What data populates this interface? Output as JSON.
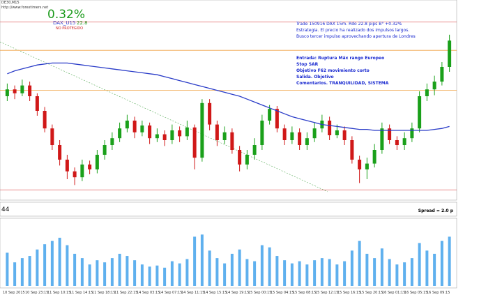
{
  "chart_data": {
    "type": "candlestick",
    "header": "DE30,M15",
    "subheader": "http://www.forextimers.net",
    "result": "0.32%",
    "symbol": "DAX_U15",
    "pips": "22.8",
    "status": "NO PROTEGIDO",
    "annotations": [
      "Trade 150916 DAX 15m. Rdo 22.8 pips B° +0.32%",
      "Estrategia. El precio ha realizado dos impulsos largos.",
      "Busco tercer impulso aprovechando apertura de Londres",
      "Entrada: Ruptura Máx rango Europeo",
      "Stop SAR",
      "Objetivo F62 movimiento corto",
      "Salida. Objetivo",
      "Comentarios. TRANQUILIDAD, SISTEMA"
    ],
    "indicator_value": "44",
    "spread": "Spread = 2.0 p",
    "x_labels": [
      "10 Sep 2015",
      "10 Sep 23:15",
      "11 Sep 10:15",
      "11 Sep 14:15",
      "11 Sep 18:15",
      "11 Sep 22:15",
      "14 Sep 03:15",
      "14 Sep 07:15",
      "14 Sep 11:15",
      "14 Sep 15:15",
      "14 Sep 19:15",
      "15 Sep 00:15",
      "15 Sep 04:15",
      "15 Sep 08:15",
      "15 Sep 12:15",
      "15 Sep 16:15",
      "15 Sep 20:15",
      "16 Sep 01:15",
      "16 Sep 05:15",
      "16 Sep 09:15"
    ],
    "ylim": [
      10150,
      10350
    ],
    "up_color": "#1aa01a",
    "down_color": "#d01818",
    "ohlc": [
      [
        10255,
        10268,
        10250,
        10262
      ],
      [
        10262,
        10266,
        10252,
        10258
      ],
      [
        10258,
        10272,
        10255,
        10266
      ],
      [
        10266,
        10270,
        10250,
        10255
      ],
      [
        10255,
        10258,
        10235,
        10240
      ],
      [
        10240,
        10244,
        10218,
        10222
      ],
      [
        10222,
        10226,
        10200,
        10205
      ],
      [
        10205,
        10210,
        10184,
        10190
      ],
      [
        10190,
        10195,
        10170,
        10178
      ],
      [
        10178,
        10182,
        10164,
        10172
      ],
      [
        10172,
        10190,
        10168,
        10185
      ],
      [
        10185,
        10189,
        10175,
        10180
      ],
      [
        10180,
        10200,
        10176,
        10195
      ],
      [
        10195,
        10210,
        10190,
        10205
      ],
      [
        10205,
        10218,
        10200,
        10212
      ],
      [
        10212,
        10228,
        10208,
        10222
      ],
      [
        10222,
        10236,
        10218,
        10230
      ],
      [
        10230,
        10234,
        10212,
        10218
      ],
      [
        10218,
        10230,
        10214,
        10225
      ],
      [
        10225,
        10228,
        10206,
        10212
      ],
      [
        10212,
        10222,
        10208,
        10216
      ],
      [
        10216,
        10220,
        10204,
        10210
      ],
      [
        10210,
        10226,
        10206,
        10220
      ],
      [
        10220,
        10224,
        10208,
        10214
      ],
      [
        10214,
        10230,
        10210,
        10223
      ],
      [
        10223,
        10226,
        10180,
        10192
      ],
      [
        10192,
        10252,
        10188,
        10248
      ],
      [
        10248,
        10252,
        10220,
        10226
      ],
      [
        10226,
        10230,
        10204,
        10210
      ],
      [
        10210,
        10224,
        10206,
        10218
      ],
      [
        10218,
        10222,
        10196,
        10200
      ],
      [
        10200,
        10204,
        10178,
        10185
      ],
      [
        10185,
        10200,
        10180,
        10195
      ],
      [
        10195,
        10212,
        10190,
        10205
      ],
      [
        10205,
        10236,
        10200,
        10230
      ],
      [
        10230,
        10246,
        10226,
        10242
      ],
      [
        10242,
        10245,
        10218,
        10222
      ],
      [
        10222,
        10226,
        10205,
        10210
      ],
      [
        10210,
        10224,
        10206,
        10218
      ],
      [
        10218,
        10222,
        10200,
        10205
      ],
      [
        10205,
        10218,
        10200,
        10212
      ],
      [
        10212,
        10228,
        10208,
        10222
      ],
      [
        10222,
        10236,
        10218,
        10230
      ],
      [
        10230,
        10234,
        10210,
        10215
      ],
      [
        10215,
        10226,
        10212,
        10220
      ],
      [
        10220,
        10224,
        10205,
        10210
      ],
      [
        10210,
        10214,
        10186,
        10190
      ],
      [
        10190,
        10194,
        10166,
        10180
      ],
      [
        10180,
        10192,
        10170,
        10186
      ],
      [
        10186,
        10206,
        10182,
        10200
      ],
      [
        10200,
        10228,
        10196,
        10222
      ],
      [
        10222,
        10226,
        10206,
        10210
      ],
      [
        10210,
        10214,
        10200,
        10205
      ],
      [
        10205,
        10218,
        10200,
        10212
      ],
      [
        10212,
        10228,
        10208,
        10222
      ],
      [
        10222,
        10260,
        10218,
        10255
      ],
      [
        10255,
        10268,
        10250,
        10262
      ],
      [
        10262,
        10276,
        10256,
        10270
      ],
      [
        10270,
        10290,
        10266,
        10285
      ],
      [
        10285,
        10318,
        10280,
        10312
      ]
    ],
    "ma": [
      10278,
      10281,
      10283,
      10285,
      10287,
      10288,
      10289,
      10289,
      10289,
      10288,
      10287,
      10286,
      10285,
      10284,
      10283,
      10282,
      10281,
      10280,
      10279,
      10278,
      10277,
      10275,
      10273,
      10271,
      10269,
      10267,
      10265,
      10263,
      10261,
      10259,
      10257,
      10255,
      10252,
      10249,
      10246,
      10243,
      10240,
      10237,
      10234,
      10232,
      10230,
      10228,
      10226,
      10225,
      10224,
      10223,
      10222,
      10221,
      10221,
      10220,
      10220,
      10220,
      10220,
      10220,
      10220,
      10220,
      10220,
      10221,
      10222,
      10224
    ],
    "ma_color": "#2a3cc8",
    "levels": [
      {
        "value": 10331,
        "color": "#e06060"
      },
      {
        "value": 10302,
        "color": "#f0a040"
      },
      {
        "value": 10261,
        "color": "#f0a040"
      },
      {
        "value": 10159,
        "color": "#e06060"
      }
    ],
    "volume": [
      310,
      220,
      260,
      280,
      340,
      390,
      420,
      450,
      380,
      300,
      260,
      200,
      240,
      220,
      260,
      300,
      280,
      240,
      200,
      180,
      190,
      170,
      230,
      210,
      250,
      460,
      480,
      330,
      260,
      210,
      300,
      340,
      250,
      230,
      380,
      360,
      280,
      240,
      210,
      230,
      200,
      240,
      260,
      250,
      200,
      230,
      330,
      420,
      300,
      260,
      350,
      250,
      200,
      220,
      260,
      400,
      330,
      300,
      420,
      460
    ],
    "volume_ylim": [
      0,
      600
    ],
    "volume_color": "#5fb0ee"
  }
}
